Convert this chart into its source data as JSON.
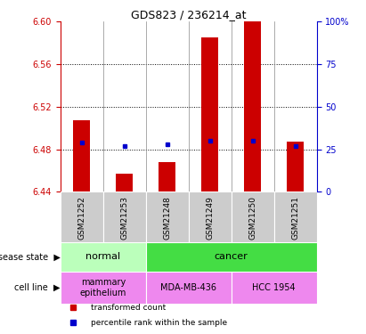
{
  "title": "GDS823 / 236214_at",
  "samples": [
    "GSM21252",
    "GSM21253",
    "GSM21248",
    "GSM21249",
    "GSM21250",
    "GSM21251"
  ],
  "bar_values": [
    6.507,
    6.457,
    6.468,
    6.585,
    6.602,
    6.487
  ],
  "bar_base": 6.44,
  "percentile_values": [
    29,
    27,
    28,
    30,
    30,
    27
  ],
  "ylim_left": [
    6.44,
    6.6
  ],
  "ylim_right": [
    0,
    100
  ],
  "yticks_left": [
    6.44,
    6.48,
    6.52,
    6.56,
    6.6
  ],
  "yticks_right": [
    0,
    25,
    50,
    75,
    100
  ],
  "bar_color": "#cc0000",
  "dot_color": "#0000cc",
  "bar_width": 0.4,
  "disease_state": [
    {
      "label": "normal",
      "span": [
        0,
        2
      ],
      "color": "#bbffbb"
    },
    {
      "label": "cancer",
      "span": [
        2,
        6
      ],
      "color": "#44dd44"
    }
  ],
  "cell_line": [
    {
      "label": "mammary\nepithelium",
      "span": [
        0,
        2
      ],
      "color": "#ee88ee"
    },
    {
      "label": "MDA-MB-436",
      "span": [
        2,
        4
      ],
      "color": "#ee88ee"
    },
    {
      "label": "HCC 1954",
      "span": [
        4,
        6
      ],
      "color": "#ee88ee"
    }
  ],
  "legend_items": [
    {
      "label": "transformed count",
      "color": "#cc0000"
    },
    {
      "label": "percentile rank within the sample",
      "color": "#0000cc"
    }
  ],
  "background_color": "#ffffff",
  "plot_bg": "#ffffff",
  "ylabel_left_color": "#cc0000",
  "ylabel_right_color": "#0000cc",
  "tick_gray_bg": "#cccccc"
}
